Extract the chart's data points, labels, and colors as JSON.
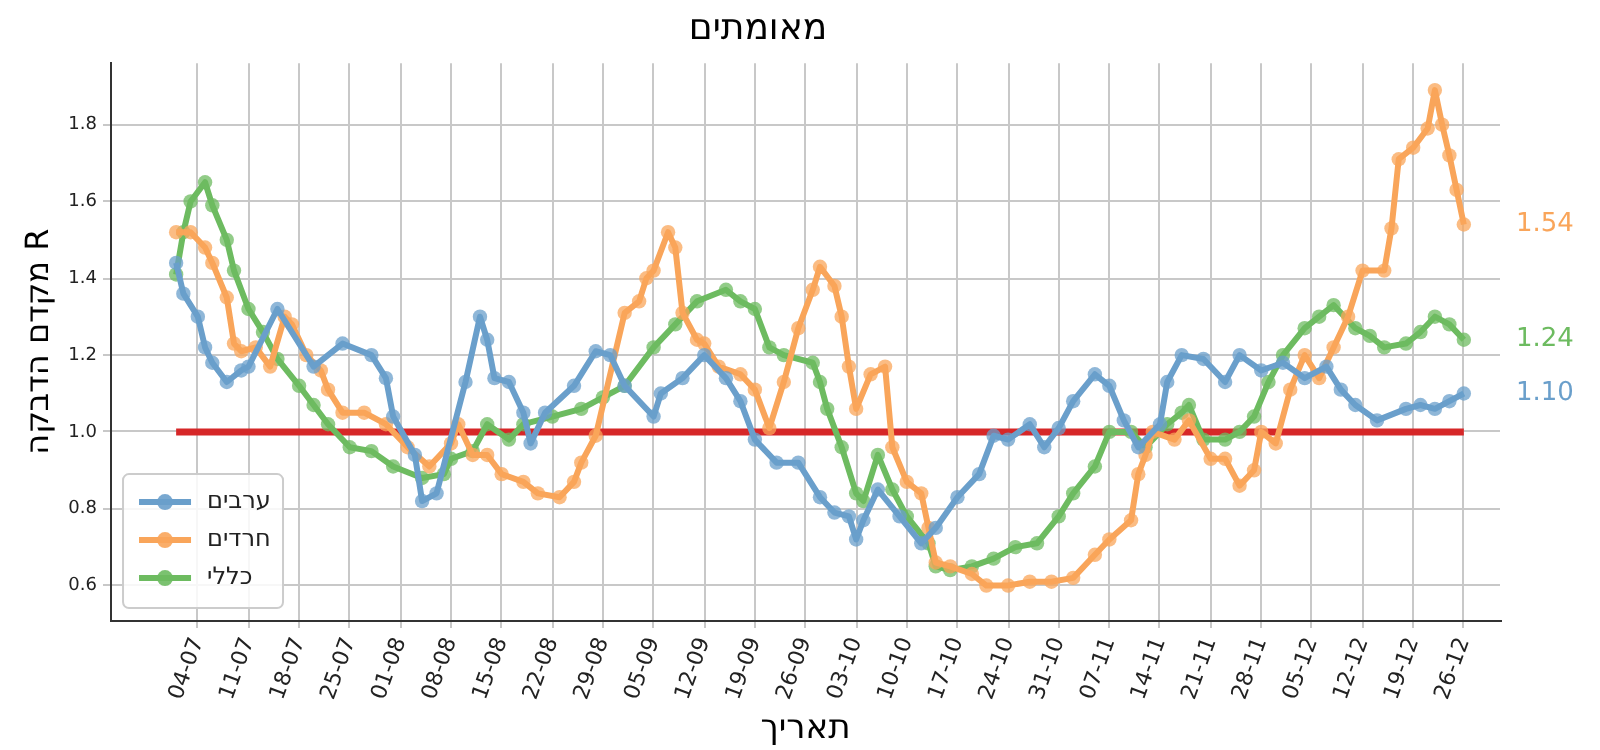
{
  "chart_data": {
    "type": "line",
    "title": "מאומתים",
    "xlabel": "תאריך",
    "ylabel": "מקדם הדבקה R",
    "xlim": [
      "--06-22",
      "--12-31"
    ],
    "ylim": [
      0.51,
      1.96
    ],
    "xticks": [
      {
        "value": "--07-04",
        "label": "04-07"
      },
      {
        "value": "--07-11",
        "label": "11-07"
      },
      {
        "value": "--07-18",
        "label": "18-07"
      },
      {
        "value": "--07-25",
        "label": "25-07"
      },
      {
        "value": "--08-01",
        "label": "01-08"
      },
      {
        "value": "--08-08",
        "label": "08-08"
      },
      {
        "value": "--08-15",
        "label": "15-08"
      },
      {
        "value": "--08-22",
        "label": "22-08"
      },
      {
        "value": "--08-29",
        "label": "29-08"
      },
      {
        "value": "--09-05",
        "label": "05-09"
      },
      {
        "value": "--09-12",
        "label": "12-09"
      },
      {
        "value": "--09-19",
        "label": "19-09"
      },
      {
        "value": "--09-26",
        "label": "26-09"
      },
      {
        "value": "--10-03",
        "label": "03-10"
      },
      {
        "value": "--10-10",
        "label": "10-10"
      },
      {
        "value": "--10-17",
        "label": "17-10"
      },
      {
        "value": "--10-24",
        "label": "24-10"
      },
      {
        "value": "--10-31",
        "label": "31-10"
      },
      {
        "value": "--11-07",
        "label": "07-11"
      },
      {
        "value": "--11-14",
        "label": "14-11"
      },
      {
        "value": "--11-21",
        "label": "21-11"
      },
      {
        "value": "--11-28",
        "label": "28-11"
      },
      {
        "value": "--12-05",
        "label": "05-12"
      },
      {
        "value": "--12-12",
        "label": "12-12"
      },
      {
        "value": "--12-19",
        "label": "19-12"
      },
      {
        "value": "--12-26",
        "label": "26-12"
      }
    ],
    "yticks": [
      0.6,
      0.8,
      {
        "value": 1,
        "label": "1.0"
      },
      1.2,
      1.4,
      1.6,
      1.8
    ],
    "grid": true,
    "legend": "bottom left",
    "marker": "circle",
    "line_style": "solid",
    "ref_lines": [
      {
        "axis": "y",
        "value": 1,
        "color": "#d62728"
      }
    ],
    "series": [
      {
        "name": "ערבים",
        "color": "#6a9fcb",
        "x": [
          "--07-01",
          "--07-02",
          "--07-04",
          "--07-05",
          "--07-06",
          "--07-08",
          "--07-10",
          "--07-11",
          "--07-15",
          "--07-20",
          "--07-24",
          "--07-28",
          "--07-30",
          "--07-31",
          "--08-03",
          "--08-04",
          "--08-06",
          "--08-10",
          "--08-12",
          "--08-13",
          "--08-14",
          "--08-16",
          "--08-18",
          "--08-19",
          "--08-21",
          "--08-25",
          "--08-28",
          "--08-30",
          "--09-01",
          "--09-05",
          "--09-06",
          "--09-09",
          "--09-12",
          "--09-15",
          "--09-17",
          "--09-19",
          "--09-22",
          "--09-25",
          "--09-28",
          "--09-30",
          "--10-02",
          "--10-03",
          "--10-04",
          "--10-06",
          "--10-09",
          "--10-12",
          "--10-14",
          "--10-17",
          "--10-20",
          "--10-22",
          "--10-24",
          "--10-27",
          "--10-29",
          "--10-31",
          "--11-02",
          "--11-05",
          "--11-07",
          "--11-09",
          "--11-11",
          "--11-14",
          "--11-15",
          "--11-17",
          "--11-20",
          "--11-23",
          "--11-25",
          "--11-28",
          "--12-01",
          "--12-04",
          "--12-07",
          "--12-09",
          "--12-11",
          "--12-14",
          "--12-18",
          "--12-20",
          "--12-22",
          "--12-24",
          "--12-26"
        ],
        "values": [
          1.44,
          1.36,
          1.3,
          1.22,
          1.18,
          1.13,
          1.16,
          1.17,
          1.32,
          1.17,
          1.23,
          1.2,
          1.14,
          1.04,
          0.94,
          0.82,
          0.84,
          1.13,
          1.3,
          1.24,
          1.14,
          1.13,
          1.05,
          0.97,
          1.05,
          1.12,
          1.21,
          1.2,
          1.12,
          1.04,
          1.1,
          1.14,
          1.2,
          1.14,
          1.08,
          0.98,
          0.92,
          0.92,
          0.83,
          0.79,
          0.78,
          0.72,
          0.77,
          0.85,
          0.78,
          0.71,
          0.75,
          0.83,
          0.89,
          0.99,
          0.98,
          1.02,
          0.96,
          1.01,
          1.08,
          1.15,
          1.12,
          1.03,
          0.96,
          1.02,
          1.13,
          1.2,
          1.19,
          1.13,
          1.2,
          1.16,
          1.18,
          1.14,
          1.17,
          1.11,
          1.07,
          1.03,
          1.06,
          1.07,
          1.06,
          1.08,
          1.1
        ],
        "value_labels": [
          null,
          null,
          null,
          null,
          null,
          null,
          null,
          null,
          null,
          null,
          null,
          null,
          null,
          null,
          null,
          null,
          null,
          null,
          null,
          null,
          null,
          null,
          null,
          null,
          null,
          null,
          null,
          null,
          null,
          null,
          null,
          null,
          null,
          null,
          null,
          null,
          null,
          null,
          null,
          null,
          null,
          null,
          null,
          null,
          null,
          null,
          null,
          null,
          null,
          null,
          null,
          null,
          null,
          null,
          null,
          null,
          null,
          null,
          null,
          null,
          null,
          null,
          null,
          null,
          null,
          null,
          null,
          null,
          null,
          null,
          null,
          null,
          null,
          null,
          null,
          null,
          "1.10"
        ]
      },
      {
        "name": "חרדים",
        "color": "#f9a55a",
        "x": [
          "--07-01",
          "--07-03",
          "--07-05",
          "--07-06",
          "--07-08",
          "--07-09",
          "--07-10",
          "--07-12",
          "--07-14",
          "--07-16",
          "--07-17",
          "--07-19",
          "--07-21",
          "--07-22",
          "--07-24",
          "--07-27",
          "--07-30",
          "--08-02",
          "--08-05",
          "--08-08",
          "--08-09",
          "--08-11",
          "--08-13",
          "--08-15",
          "--08-18",
          "--08-20",
          "--08-23",
          "--08-25",
          "--08-26",
          "--08-28",
          "--09-01",
          "--09-03",
          "--09-04",
          "--09-05",
          "--09-07",
          "--09-08",
          "--09-09",
          "--09-11",
          "--09-12",
          "--09-14",
          "--09-17",
          "--09-19",
          "--09-21",
          "--09-23",
          "--09-25",
          "--09-27",
          "--09-28",
          "--09-30",
          "--10-01",
          "--10-02",
          "--10-03",
          "--10-05",
          "--10-07",
          "--10-08",
          "--10-10",
          "--10-12",
          "--10-13",
          "--10-14",
          "--10-16",
          "--10-19",
          "--10-21",
          "--10-24",
          "--10-27",
          "--10-30",
          "--11-02",
          "--11-05",
          "--11-07",
          "--11-10",
          "--11-11",
          "--11-12",
          "--11-13",
          "--11-16",
          "--11-18",
          "--11-21",
          "--11-23",
          "--11-25",
          "--11-27",
          "--11-28",
          "--11-30",
          "--12-02",
          "--12-04",
          "--12-06",
          "--12-08",
          "--12-10",
          "--12-12",
          "--12-15",
          "--12-16",
          "--12-17",
          "--12-19",
          "--12-21",
          "--12-22",
          "--12-23",
          "--12-24",
          "--12-25",
          "--12-26"
        ],
        "values": [
          1.52,
          1.52,
          1.48,
          1.44,
          1.35,
          1.23,
          1.21,
          1.22,
          1.17,
          1.3,
          1.28,
          1.2,
          1.16,
          1.11,
          1.05,
          1.05,
          1.02,
          0.96,
          0.91,
          0.97,
          1.02,
          0.94,
          0.94,
          0.89,
          0.87,
          0.84,
          0.83,
          0.87,
          0.92,
          0.99,
          1.31,
          1.34,
          1.4,
          1.42,
          1.52,
          1.48,
          1.31,
          1.24,
          1.23,
          1.17,
          1.15,
          1.11,
          1.01,
          1.13,
          1.27,
          1.37,
          1.43,
          1.38,
          1.3,
          1.17,
          1.06,
          1.15,
          1.17,
          0.96,
          0.87,
          0.84,
          0.75,
          0.66,
          0.65,
          0.63,
          0.6,
          0.6,
          0.61,
          0.61,
          0.62,
          0.68,
          0.72,
          0.77,
          0.89,
          0.94,
          1,
          0.98,
          1.03,
          0.93,
          0.93,
          0.86,
          0.9,
          1,
          0.97,
          1.11,
          1.2,
          1.14,
          1.22,
          1.3,
          1.42,
          1.42,
          1.53,
          1.71,
          1.74,
          1.79,
          1.89,
          1.8,
          1.72,
          1.63,
          1.54
        ],
        "value_labels": [
          null,
          null,
          null,
          null,
          null,
          null,
          null,
          null,
          null,
          null,
          null,
          null,
          null,
          null,
          null,
          null,
          null,
          null,
          null,
          null,
          null,
          null,
          null,
          null,
          null,
          null,
          null,
          null,
          null,
          null,
          null,
          null,
          null,
          null,
          null,
          null,
          null,
          null,
          null,
          null,
          null,
          null,
          null,
          null,
          null,
          null,
          null,
          null,
          null,
          null,
          null,
          null,
          null,
          null,
          null,
          null,
          null,
          null,
          null,
          null,
          null,
          null,
          null,
          null,
          null,
          null,
          null,
          null,
          null,
          null,
          null,
          null,
          null,
          null,
          null,
          null,
          null,
          null,
          null,
          null,
          null,
          null,
          null,
          null,
          null,
          null,
          null,
          null,
          null,
          null,
          null,
          null,
          null,
          null,
          "1.54"
        ]
      },
      {
        "name": "כללי",
        "color": "#6dbb60",
        "x": [
          "--07-01",
          "--07-02",
          "--07-03",
          "--07-05",
          "--07-06",
          "--07-08",
          "--07-09",
          "--07-11",
          "--07-13",
          "--07-15",
          "--07-18",
          "--07-20",
          "--07-22",
          "--07-25",
          "--07-28",
          "--07-31",
          "--08-04",
          "--08-07",
          "--08-08",
          "--08-11",
          "--08-13",
          "--08-16",
          "--08-18",
          "--08-22",
          "--08-26",
          "--08-29",
          "--09-01",
          "--09-05",
          "--09-08",
          "--09-11",
          "--09-15",
          "--09-17",
          "--09-19",
          "--09-21",
          "--09-23",
          "--09-27",
          "--09-28",
          "--09-29",
          "--10-01",
          "--10-03",
          "--10-04",
          "--10-06",
          "--10-08",
          "--10-10",
          "--10-13",
          "--10-14",
          "--10-16",
          "--10-19",
          "--10-22",
          "--10-25",
          "--10-28",
          "--10-31",
          "--11-02",
          "--11-05",
          "--11-07",
          "--11-10",
          "--11-12",
          "--11-15",
          "--11-17",
          "--11-18",
          "--11-20",
          "--11-23",
          "--11-25",
          "--11-27",
          "--11-29",
          "--12-01",
          "--12-04",
          "--12-06",
          "--12-08",
          "--12-11",
          "--12-13",
          "--12-15",
          "--12-18",
          "--12-20",
          "--12-22",
          "--12-24",
          "--12-26"
        ],
        "values": [
          1.41,
          1.52,
          1.6,
          1.65,
          1.59,
          1.5,
          1.42,
          1.32,
          1.26,
          1.19,
          1.12,
          1.07,
          1.02,
          0.96,
          0.95,
          0.91,
          0.88,
          0.89,
          0.93,
          0.95,
          1.02,
          0.98,
          1.02,
          1.04,
          1.06,
          1.09,
          1.12,
          1.22,
          1.28,
          1.34,
          1.37,
          1.34,
          1.32,
          1.22,
          1.2,
          1.18,
          1.13,
          1.06,
          0.96,
          0.84,
          0.82,
          0.94,
          0.85,
          0.78,
          0.71,
          0.65,
          0.64,
          0.65,
          0.67,
          0.7,
          0.71,
          0.78,
          0.84,
          0.91,
          1,
          1,
          0.96,
          1.02,
          1.05,
          1.07,
          0.98,
          0.98,
          1,
          1.04,
          1.13,
          1.2,
          1.27,
          1.3,
          1.33,
          1.27,
          1.25,
          1.22,
          1.23,
          1.26,
          1.3,
          1.28,
          1.24
        ],
        "value_labels": [
          null,
          null,
          null,
          null,
          null,
          null,
          null,
          null,
          null,
          null,
          null,
          null,
          null,
          null,
          null,
          null,
          null,
          null,
          null,
          null,
          null,
          null,
          null,
          null,
          null,
          null,
          null,
          null,
          null,
          null,
          null,
          null,
          null,
          null,
          null,
          null,
          null,
          null,
          null,
          null,
          null,
          null,
          null,
          null,
          null,
          null,
          null,
          null,
          null,
          null,
          null,
          null,
          null,
          null,
          null,
          null,
          null,
          null,
          null,
          null,
          null,
          null,
          null,
          null,
          null,
          null,
          null,
          null,
          null,
          null,
          null,
          null,
          null,
          null,
          null,
          null,
          "1.24"
        ]
      }
    ]
  }
}
